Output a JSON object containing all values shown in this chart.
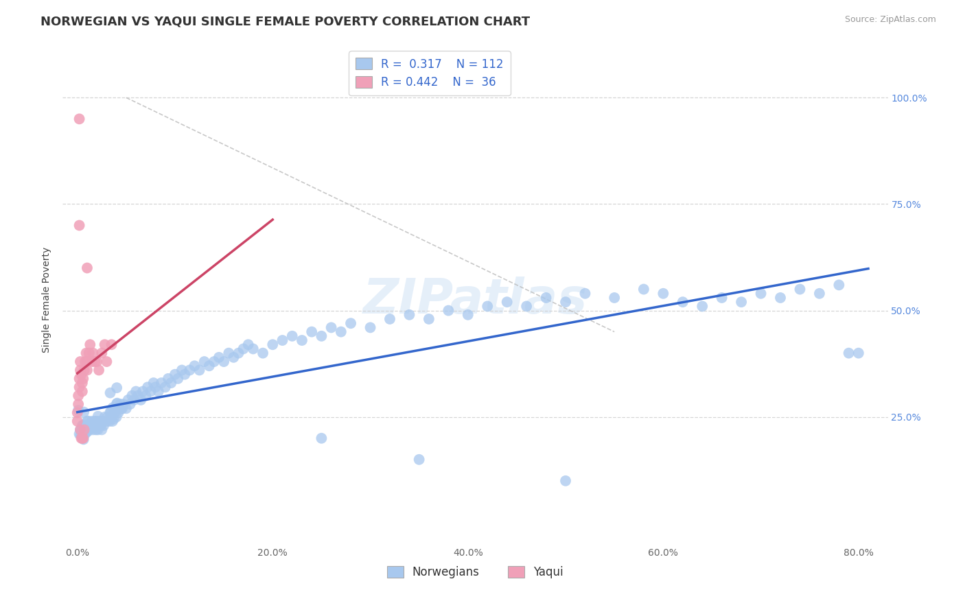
{
  "title": "NORWEGIAN VS YAQUI SINGLE FEMALE POVERTY CORRELATION CHART",
  "source_text": "Source: ZipAtlas.com",
  "ylabel": "Single Female Poverty",
  "watermark": "ZIPatlas",
  "blue_color": "#A8C8EE",
  "pink_color": "#F0A0B8",
  "blue_line_color": "#3366CC",
  "pink_line_color": "#CC4466",
  "background_color": "#FFFFFF",
  "grid_color": "#CCCCCC",
  "norwegians_label": "Norwegians",
  "yaqui_label": "Yaqui",
  "title_fontsize": 13,
  "axis_fontsize": 10,
  "tick_fontsize": 10,
  "legend_fontsize": 12,
  "watermark_fontsize": 52,
  "xtick_vals": [
    0.0,
    0.2,
    0.4,
    0.6,
    0.8
  ],
  "xtick_labels": [
    "0.0%",
    "20.0%",
    "40.0%",
    "60.0%",
    "80.0%"
  ],
  "ytick_vals": [
    0.25,
    0.5,
    0.75,
    1.0
  ],
  "ytick_labels": [
    "25.0%",
    "50.0%",
    "75.0%",
    "100.0%"
  ],
  "xlim": [
    -0.015,
    0.83
  ],
  "ylim": [
    -0.05,
    1.1
  ],
  "norw_x": [
    0.002,
    0.003,
    0.005,
    0.007,
    0.008,
    0.01,
    0.01,
    0.012,
    0.013,
    0.015,
    0.016,
    0.017,
    0.018,
    0.019,
    0.02,
    0.02,
    0.021,
    0.022,
    0.023,
    0.024,
    0.025,
    0.026,
    0.027,
    0.028,
    0.03,
    0.031,
    0.033,
    0.034,
    0.035,
    0.036,
    0.038,
    0.04,
    0.041,
    0.042,
    0.044,
    0.046,
    0.047,
    0.05,
    0.052,
    0.054,
    0.056,
    0.058,
    0.06,
    0.062,
    0.065,
    0.067,
    0.07,
    0.072,
    0.075,
    0.078,
    0.08,
    0.083,
    0.086,
    0.09,
    0.093,
    0.096,
    0.1,
    0.103,
    0.107,
    0.11,
    0.115,
    0.12,
    0.125,
    0.13,
    0.135,
    0.14,
    0.145,
    0.15,
    0.155,
    0.16,
    0.165,
    0.17,
    0.175,
    0.18,
    0.19,
    0.2,
    0.21,
    0.22,
    0.23,
    0.24,
    0.25,
    0.26,
    0.27,
    0.28,
    0.3,
    0.32,
    0.34,
    0.36,
    0.38,
    0.4,
    0.42,
    0.44,
    0.46,
    0.48,
    0.5,
    0.52,
    0.55,
    0.58,
    0.6,
    0.62,
    0.64,
    0.66,
    0.68,
    0.7,
    0.72,
    0.74,
    0.76,
    0.78,
    0.79,
    0.8,
    0.25,
    0.35,
    0.5
  ],
  "norw_y": [
    0.21,
    0.22,
    0.23,
    0.22,
    0.21,
    0.24,
    0.23,
    0.22,
    0.23,
    0.24,
    0.22,
    0.23,
    0.24,
    0.22,
    0.23,
    0.24,
    0.22,
    0.23,
    0.24,
    0.23,
    0.22,
    0.24,
    0.23,
    0.25,
    0.24,
    0.25,
    0.24,
    0.26,
    0.25,
    0.24,
    0.26,
    0.25,
    0.27,
    0.26,
    0.28,
    0.27,
    0.28,
    0.27,
    0.29,
    0.28,
    0.3,
    0.29,
    0.31,
    0.3,
    0.29,
    0.31,
    0.3,
    0.32,
    0.31,
    0.33,
    0.32,
    0.31,
    0.33,
    0.32,
    0.34,
    0.33,
    0.35,
    0.34,
    0.36,
    0.35,
    0.36,
    0.37,
    0.36,
    0.38,
    0.37,
    0.38,
    0.39,
    0.38,
    0.4,
    0.39,
    0.4,
    0.41,
    0.42,
    0.41,
    0.4,
    0.42,
    0.43,
    0.44,
    0.43,
    0.45,
    0.44,
    0.46,
    0.45,
    0.47,
    0.46,
    0.48,
    0.49,
    0.48,
    0.5,
    0.49,
    0.51,
    0.52,
    0.51,
    0.53,
    0.52,
    0.54,
    0.53,
    0.55,
    0.54,
    0.52,
    0.51,
    0.53,
    0.52,
    0.54,
    0.53,
    0.55,
    0.54,
    0.56,
    0.4,
    0.4,
    0.2,
    0.15,
    0.1
  ],
  "yaqui_x": [
    0.0,
    0.0,
    0.001,
    0.001,
    0.002,
    0.002,
    0.003,
    0.003,
    0.004,
    0.005,
    0.005,
    0.006,
    0.007,
    0.008,
    0.009,
    0.01,
    0.01,
    0.012,
    0.013,
    0.015,
    0.016,
    0.018,
    0.02,
    0.022,
    0.025,
    0.028,
    0.03,
    0.035,
    0.01,
    0.002,
    0.002,
    0.003,
    0.004,
    0.005,
    0.006,
    0.007
  ],
  "yaqui_y": [
    0.24,
    0.26,
    0.28,
    0.3,
    0.32,
    0.34,
    0.36,
    0.38,
    0.35,
    0.33,
    0.31,
    0.34,
    0.36,
    0.38,
    0.4,
    0.36,
    0.38,
    0.4,
    0.42,
    0.38,
    0.4,
    0.38,
    0.38,
    0.36,
    0.4,
    0.42,
    0.38,
    0.42,
    0.6,
    0.95,
    0.7,
    0.22,
    0.2,
    0.2,
    0.2,
    0.22
  ]
}
